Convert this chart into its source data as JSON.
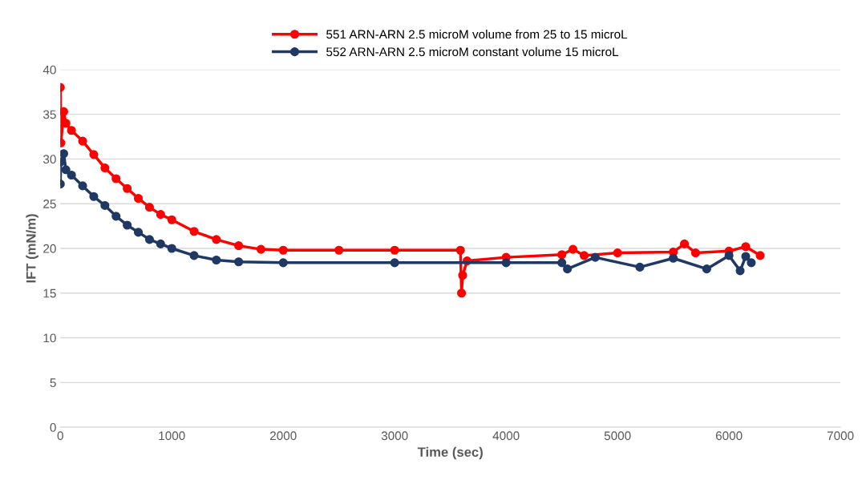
{
  "chart_data": {
    "type": "line",
    "xlabel": "Time (sec)",
    "ylabel": "IFT (mN/m)",
    "xlim": [
      0,
      7000
    ],
    "xticks": [
      0,
      1000,
      2000,
      3000,
      4000,
      5000,
      6000,
      7000
    ],
    "ylim": [
      0,
      40
    ],
    "yticks": [
      0,
      5,
      10,
      15,
      20,
      25,
      30,
      35,
      40
    ],
    "grid": "y",
    "legend": "top",
    "marker": "circle",
    "line_style": "solid",
    "series": [
      {
        "name": "551 ARN-ARN 2.5 microM volume from 25 to 15 microL",
        "color": "#ff0000",
        "x": [
          0,
          5,
          30,
          50,
          100,
          200,
          300,
          400,
          500,
          600,
          700,
          800,
          900,
          1000,
          1200,
          1400,
          1600,
          1800,
          2000,
          2500,
          3000,
          3590,
          3600,
          3610,
          3650,
          4000,
          4500,
          4600,
          4700,
          5000,
          5500,
          5600,
          5700,
          6000,
          6150,
          6280
        ],
        "values": [
          38,
          31.8,
          35.3,
          34,
          33.2,
          32,
          30.5,
          29,
          27.8,
          26.7,
          25.6,
          24.6,
          23.8,
          23.2,
          21.9,
          21,
          20.3,
          19.9,
          19.8,
          19.8,
          19.8,
          19.8,
          15,
          17,
          18.6,
          19,
          19.3,
          19.9,
          19.2,
          19.5,
          19.6,
          20.5,
          19.5,
          19.7,
          20.2,
          19.2
        ]
      },
      {
        "name": "552 ARN-ARN 2.5 microM constant volume 15 microL",
        "color": "#203864",
        "x": [
          0,
          5,
          30,
          50,
          100,
          200,
          300,
          400,
          500,
          600,
          700,
          800,
          900,
          1000,
          1200,
          1400,
          1600,
          2000,
          3000,
          4000,
          4500,
          4550,
          4800,
          5200,
          5500,
          5800,
          6000,
          6100,
          6150,
          6200
        ],
        "values": [
          27.2,
          29.7,
          30.6,
          28.8,
          28.2,
          27,
          25.8,
          24.8,
          23.6,
          22.6,
          21.8,
          21,
          20.5,
          20,
          19.2,
          18.7,
          18.5,
          18.4,
          18.4,
          18.4,
          18.4,
          17.7,
          19,
          17.9,
          18.9,
          17.7,
          19.2,
          17.5,
          19.1,
          18.4
        ]
      }
    ]
  }
}
